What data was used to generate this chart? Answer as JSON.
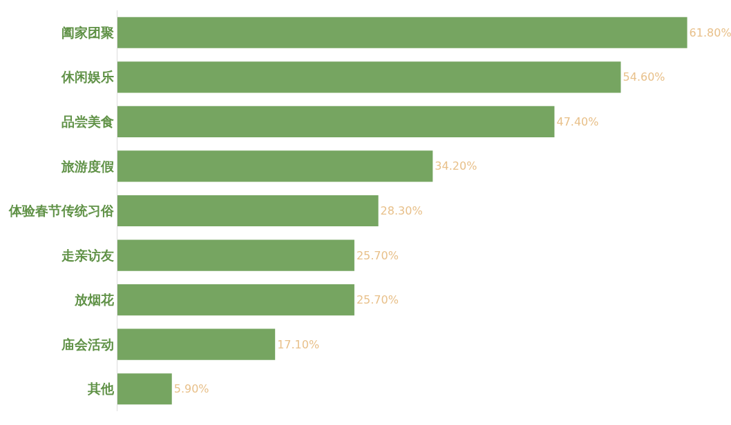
{
  "chart_data": {
    "type": "bar",
    "orientation": "horizontal",
    "categories": [
      "阖家团聚",
      "休闲娱乐",
      "品尝美食",
      "旅游度假",
      "体验春节传统习俗",
      "走亲访友",
      "放烟花",
      "庙会活动",
      "其他"
    ],
    "values": [
      61.8,
      54.6,
      47.4,
      34.2,
      28.3,
      25.7,
      25.7,
      17.1,
      5.9
    ],
    "value_labels": [
      "61.80%",
      "54.60%",
      "47.40%",
      "34.20%",
      "28.30%",
      "25.70%",
      "25.70%",
      "17.10%",
      "5.90%"
    ],
    "color": "#76a561",
    "tick_labels": "y"
  }
}
